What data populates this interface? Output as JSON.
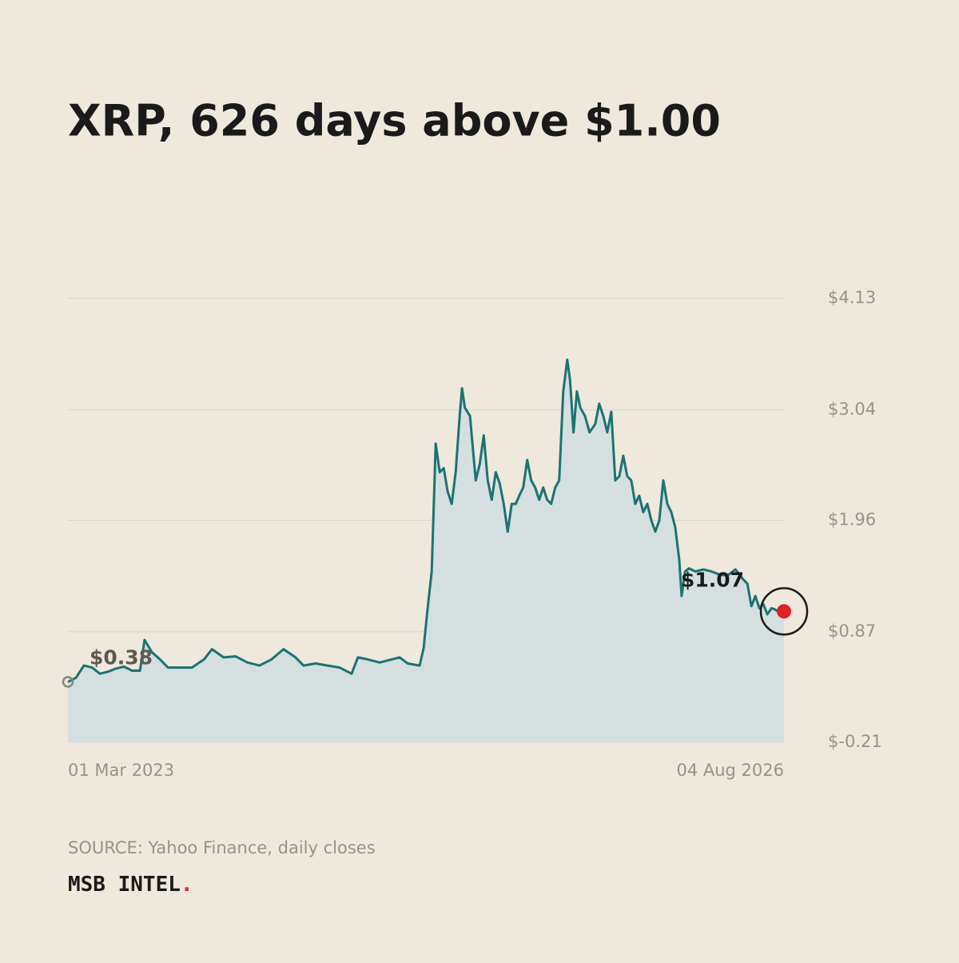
{
  "chart_data": {
    "type": "area",
    "title": "XRP, 626 days above $1.00",
    "xlim": [
      0,
      1252
    ],
    "xticks": [
      {
        "value": 0,
        "label": "01 Mar 2023"
      },
      {
        "value": 1252,
        "label": "04 Aug 2026"
      }
    ],
    "ylim": [
      -0.21,
      4.13
    ],
    "yticks": [
      {
        "value": -0.21,
        "label": "$-0.21"
      },
      {
        "value": 0.87,
        "label": "$0.87"
      },
      {
        "value": 1.96,
        "label": "$1.96"
      },
      {
        "value": 3.04,
        "label": "$3.04"
      },
      {
        "value": 4.13,
        "label": "$4.13"
      }
    ],
    "grid": true,
    "series": [
      {
        "color": "#1b7373",
        "fill": "#d5dfe0",
        "x": [
          0,
          14,
          28,
          42,
          56,
          70,
          84,
          98,
          112,
          126,
          134,
          147,
          161,
          175,
          196,
          217,
          238,
          252,
          272,
          293,
          314,
          335,
          356,
          377,
          398,
          412,
          433,
          454,
          475,
          496,
          507,
          524,
          545,
          566,
          580,
          594,
          615,
          622,
          629,
          636,
          643,
          650,
          657,
          664,
          671,
          678,
          685,
          689,
          694,
          703,
          713,
          720,
          727,
          734,
          741,
          748,
          755,
          762,
          769,
          776,
          783,
          789,
          796,
          803,
          810,
          817,
          824,
          831,
          838,
          845,
          852,
          859,
          866,
          873,
          878,
          884,
          890,
          896,
          904,
          912,
          922,
          929,
          936,
          943,
          950,
          957,
          964,
          971,
          978,
          985,
          992,
          999,
          1006,
          1013,
          1020,
          1027,
          1034,
          1041,
          1048,
          1055,
          1062,
          1069,
          1073,
          1079,
          1086,
          1097,
          1111,
          1125,
          1139,
          1153,
          1167,
          1181,
          1188,
          1195,
          1202,
          1209,
          1216,
          1223,
          1230,
          1236,
          1243,
          1252
        ],
        "values": [
          0.38,
          0.42,
          0.54,
          0.52,
          0.46,
          0.48,
          0.51,
          0.53,
          0.49,
          0.49,
          0.79,
          0.67,
          0.6,
          0.52,
          0.52,
          0.52,
          0.6,
          0.7,
          0.62,
          0.63,
          0.57,
          0.54,
          0.6,
          0.7,
          0.62,
          0.54,
          0.56,
          0.54,
          0.52,
          0.46,
          0.62,
          0.6,
          0.57,
          0.6,
          0.62,
          0.56,
          0.54,
          0.71,
          1.1,
          1.46,
          2.71,
          2.43,
          2.47,
          2.24,
          2.12,
          2.43,
          2.98,
          3.25,
          3.06,
          2.98,
          2.35,
          2.51,
          2.79,
          2.35,
          2.16,
          2.43,
          2.32,
          2.12,
          1.85,
          2.12,
          2.12,
          2.2,
          2.28,
          2.55,
          2.35,
          2.28,
          2.16,
          2.28,
          2.16,
          2.12,
          2.28,
          2.35,
          3.22,
          3.53,
          3.33,
          2.82,
          3.22,
          3.06,
          2.98,
          2.82,
          2.9,
          3.1,
          2.98,
          2.82,
          3.02,
          2.35,
          2.39,
          2.59,
          2.39,
          2.35,
          2.12,
          2.2,
          2.04,
          2.12,
          1.96,
          1.85,
          1.96,
          2.35,
          2.12,
          2.04,
          1.89,
          1.57,
          1.22,
          1.46,
          1.49,
          1.46,
          1.48,
          1.46,
          1.43,
          1.42,
          1.48,
          1.38,
          1.34,
          1.12,
          1.22,
          1.1,
          1.14,
          1.04,
          1.1,
          1.09,
          1.06,
          1.07
        ]
      }
    ],
    "start_label": "$0.38",
    "end_label": "$1.07",
    "start_marker_color": "#8a857c",
    "end_marker_color": "#e0202a",
    "source": "SOURCE: Yahoo Finance, daily closes",
    "brand": "MSB INTEL",
    "brand_mark": "."
  }
}
